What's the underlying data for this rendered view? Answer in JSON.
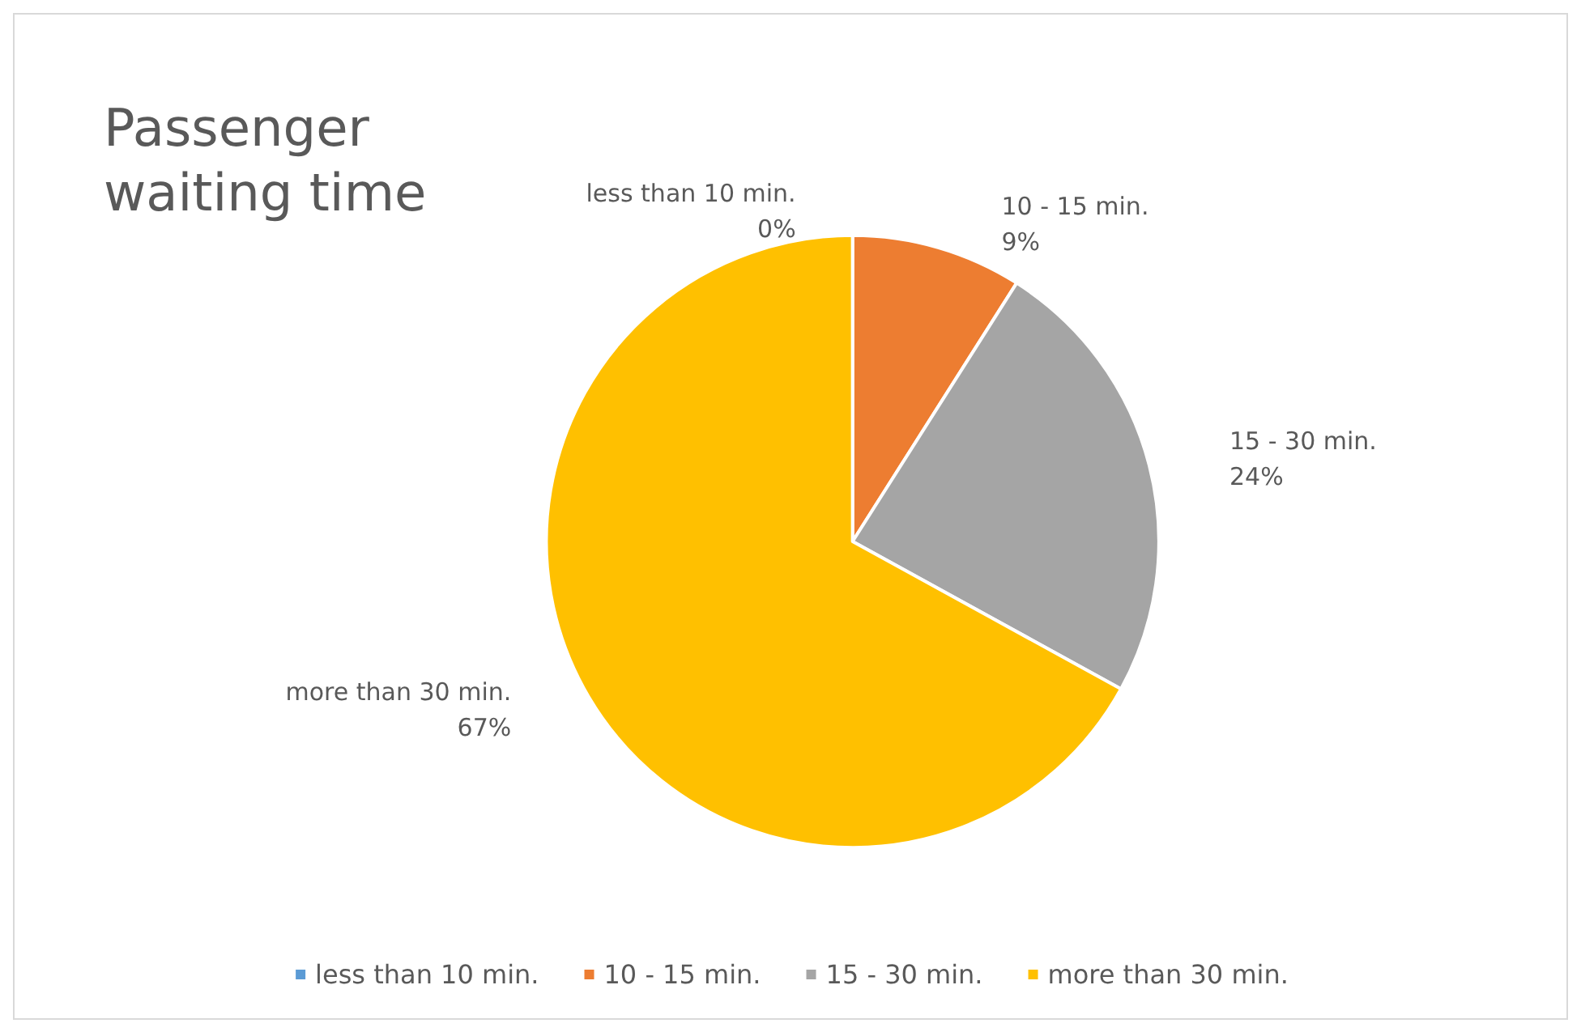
{
  "chart_data": {
    "type": "pie",
    "title": "Passenger waiting time",
    "categories": [
      "less than 10 min.",
      "10 - 15 min.",
      "15 - 30 min.",
      "more than 30 min."
    ],
    "values": [
      0,
      9,
      24,
      67
    ],
    "colors": [
      "#5b9bd5",
      "#ed7d31",
      "#a5a5a5",
      "#ffc000"
    ],
    "value_labels": [
      "0%",
      "9%",
      "24%",
      "67%"
    ],
    "legend": "bottom"
  }
}
